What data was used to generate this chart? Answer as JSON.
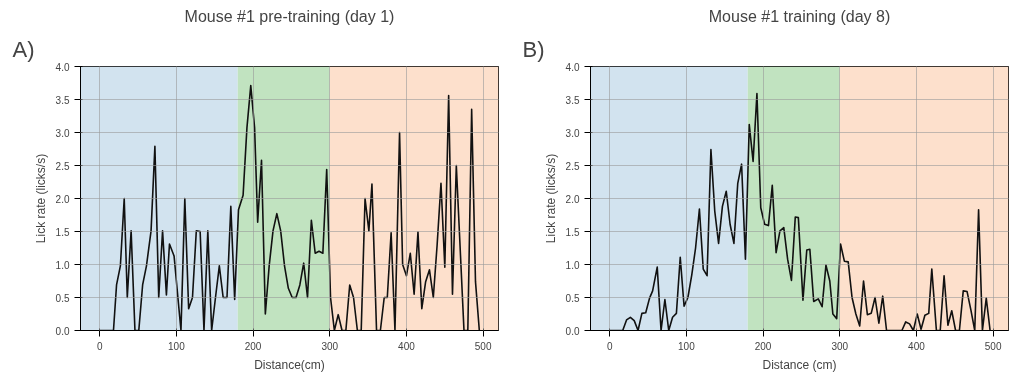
{
  "chart_data": [
    {
      "type": "line",
      "title": "Mouse #1 pre-training (day 1)",
      "xlabel": "Distance(cm)",
      "ylabel": "Lick rate (licks/s)",
      "annotations": [
        "A)"
      ],
      "x": [
        0,
        18,
        22,
        27,
        32,
        36,
        41,
        46,
        51,
        56,
        61,
        67,
        72,
        77,
        82,
        87,
        91,
        97,
        102,
        106,
        111,
        116,
        121,
        126,
        131,
        136,
        141,
        146,
        151,
        156,
        161,
        166,
        171,
        176,
        181,
        187,
        192,
        197,
        202,
        206,
        211,
        216,
        221,
        226,
        231,
        236,
        241,
        246,
        251,
        256,
        261,
        266,
        271,
        276,
        281,
        286,
        291,
        296,
        301,
        306,
        311,
        316,
        321,
        326,
        331,
        336,
        341,
        346,
        351,
        355,
        361,
        366,
        371,
        375,
        380,
        385,
        391,
        395,
        400,
        405,
        410,
        415,
        420,
        425,
        430,
        435,
        440,
        445,
        450,
        455,
        460,
        465,
        475,
        480,
        485,
        490,
        495
      ],
      "series": [
        {
          "color": "#111111",
          "values": [
            0,
            0,
            0.69,
            0.98,
            2.0,
            0.5,
            1.51,
            0,
            0,
            0.69,
            0.98,
            1.51,
            2.79,
            0.5,
            1.51,
            0.54,
            1.31,
            1.13,
            0.5,
            0,
            2.0,
            0.33,
            0.5,
            1.51,
            1.5,
            0,
            1.51,
            0,
            0.5,
            0.98,
            0.5,
            0.5,
            1.88,
            0.47,
            1.83,
            2.05,
            3.07,
            3.71,
            3.07,
            1.64,
            2.58,
            0.25,
            0.98,
            1.51,
            1.77,
            1.51,
            0.98,
            0.64,
            0.5,
            0.5,
            0.69,
            1.02,
            0.5,
            1.67,
            1.17,
            1.2,
            1.17,
            2.44,
            0.5,
            0,
            0.24,
            0,
            0,
            0.69,
            0.5,
            0,
            0,
            2.0,
            1.51,
            2.22,
            0,
            0,
            0.5,
            0.5,
            1.48,
            0,
            3.0,
            1.0,
            0.83,
            1.17,
            0.55,
            1.49,
            0.33,
            0.74,
            0.92,
            0.5,
            1.3,
            2.23,
            0.96,
            3.56,
            0.55,
            2.5,
            0,
            0,
            3.35,
            0.74,
            0
          ]
        }
      ],
      "xlim": [
        -25,
        520
      ],
      "ylim": [
        0,
        4
      ],
      "xticks": [
        0,
        100,
        200,
        300,
        400,
        500
      ],
      "yticks": [
        {
          "value": 0,
          "label": "0.0"
        },
        {
          "value": 0.5,
          "label": "0.5"
        },
        {
          "value": 1,
          "label": "1.0"
        },
        {
          "value": 1.5,
          "label": "1.5"
        },
        {
          "value": 2,
          "label": "2.0"
        },
        {
          "value": 2.5,
          "label": "2.5"
        },
        {
          "value": 3,
          "label": "3.0"
        },
        {
          "value": 3.5,
          "label": "3.5"
        },
        {
          "value": 4,
          "label": "4.0"
        }
      ],
      "grid": true,
      "bands": [
        {
          "axis": "x",
          "from": -25,
          "to": 180,
          "color": "#d2e3ef"
        },
        {
          "axis": "x",
          "from": 180,
          "to": 300,
          "color": "#c1e3c0"
        },
        {
          "axis": "x",
          "from": 300,
          "to": 520,
          "color": "#fde0cc"
        }
      ]
    },
    {
      "type": "line",
      "title": "Mouse #1 training (day 8)",
      "xlabel": "Distance (cm)",
      "ylabel": "Lick rate (licks/s)",
      "annotations": [
        "B)"
      ],
      "x": [
        0,
        17,
        22,
        27,
        32,
        37,
        42,
        47,
        52,
        56,
        62,
        67,
        72,
        77,
        82,
        87,
        92,
        97,
        102,
        107,
        112,
        117,
        122,
        127,
        132,
        137,
        142,
        147,
        152,
        157,
        162,
        167,
        172,
        177,
        182,
        187,
        192,
        197,
        202,
        207,
        212,
        217,
        222,
        227,
        232,
        237,
        242,
        246,
        252,
        257,
        261,
        266,
        272,
        277,
        282,
        287,
        291,
        296,
        301,
        306,
        311,
        316,
        321,
        326,
        331,
        336,
        341,
        346,
        351,
        356,
        361,
        381,
        386,
        391,
        396,
        401,
        406,
        411,
        416,
        420,
        426,
        431,
        436,
        441,
        446,
        451,
        456,
        461,
        466,
        471,
        476,
        481,
        486,
        491,
        496
      ],
      "series": [
        {
          "color": "#111111",
          "values": [
            0,
            0,
            0.16,
            0.2,
            0.15,
            0,
            0.26,
            0.27,
            0.49,
            0.6,
            0.96,
            0,
            0.47,
            0,
            0.2,
            0.26,
            1.11,
            0.37,
            0.5,
            0.84,
            1.25,
            1.84,
            0.93,
            0.83,
            2.74,
            1.81,
            1.32,
            1.88,
            2.11,
            1.61,
            1.32,
            2.23,
            2.52,
            1.08,
            3.12,
            2.56,
            3.59,
            1.86,
            1.61,
            1.59,
            2.2,
            1.18,
            1.51,
            1.56,
            1.08,
            0.76,
            1.72,
            1.71,
            0.46,
            1.22,
            1.23,
            0.44,
            0.48,
            0.36,
            0.99,
            0.75,
            0.25,
            0.18,
            1.31,
            1.05,
            1.04,
            0.5,
            0.25,
            0.07,
            0.75,
            0.24,
            0.26,
            0.5,
            0.11,
            0.52,
            0,
            0,
            0.13,
            0.1,
            0,
            0.25,
            0.02,
            0.23,
            0.26,
            0.93,
            0,
            0,
            0.83,
            0.08,
            0.3,
            0,
            0,
            0.6,
            0.59,
            0.31,
            0,
            1.83,
            0,
            0.49,
            0
          ]
        }
      ],
      "xlim": [
        -25,
        520
      ],
      "ylim": [
        0,
        4
      ],
      "xticks": [
        0,
        100,
        200,
        300,
        400,
        500
      ],
      "yticks": [
        {
          "value": 0,
          "label": "0.0"
        },
        {
          "value": 0.5,
          "label": "0.5"
        },
        {
          "value": 1,
          "label": "1.0"
        },
        {
          "value": 1.5,
          "label": "1.5"
        },
        {
          "value": 2,
          "label": "2.0"
        },
        {
          "value": 2.5,
          "label": "2.5"
        },
        {
          "value": 3,
          "label": "3.0"
        },
        {
          "value": 3.5,
          "label": "3.5"
        },
        {
          "value": 4,
          "label": "4.0"
        }
      ],
      "grid": true,
      "bands": [
        {
          "axis": "x",
          "from": -25,
          "to": 180,
          "color": "#d2e3ef"
        },
        {
          "axis": "x",
          "from": 180,
          "to": 300,
          "color": "#c1e3c0"
        },
        {
          "axis": "x",
          "from": 300,
          "to": 520,
          "color": "#fde0cc"
        }
      ]
    }
  ]
}
